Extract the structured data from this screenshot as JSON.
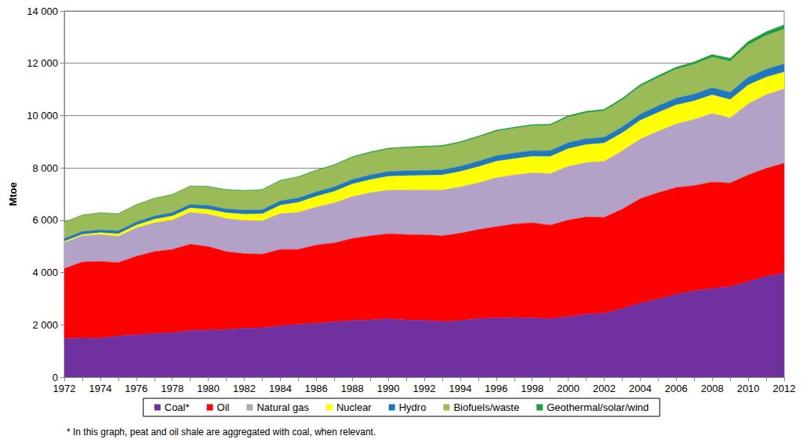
{
  "chart_data": {
    "type": "area",
    "stacked": true,
    "y_label": "Mtoe",
    "footnote": "* In this graph, peat and oil shale are aggregated with coal, when relevant.",
    "legend": "bottom",
    "grid": true,
    "categories": [
      "1972",
      null,
      "1974",
      null,
      "1976",
      null,
      "1978",
      null,
      "1980",
      null,
      "1982",
      null,
      "1984",
      null,
      "1986",
      null,
      "1988",
      null,
      "1990",
      null,
      "1992",
      null,
      "1994",
      null,
      "1996",
      null,
      "1998",
      null,
      "2000",
      null,
      "2002",
      null,
      "2004",
      null,
      "2006",
      null,
      "2008",
      null,
      "2010",
      null,
      "2012"
    ],
    "ylim": [
      0,
      14000
    ],
    "yticks": [
      0,
      {
        "value": 2000,
        "label": "2 000"
      },
      {
        "value": 4000,
        "label": "4 000"
      },
      {
        "value": 6000,
        "label": "6 000"
      },
      {
        "value": 8000,
        "label": "8 000"
      },
      {
        "value": 10000,
        "label": "10 000"
      },
      {
        "value": 12000,
        "label": "12 000"
      },
      {
        "value": 14000,
        "label": "14 000"
      }
    ],
    "series": [
      {
        "name": "Coal*",
        "color": "#7030a0",
        "values": [
          1480,
          1500,
          1490,
          1580,
          1620,
          1670,
          1700,
          1780,
          1800,
          1820,
          1870,
          1890,
          1960,
          2020,
          2060,
          2120,
          2160,
          2190,
          2230,
          2190,
          2170,
          2120,
          2160,
          2240,
          2260,
          2280,
          2260,
          2240,
          2310,
          2410,
          2440,
          2620,
          2830,
          2990,
          3170,
          3300,
          3390,
          3460,
          3650,
          3860,
          3970
        ]
      },
      {
        "name": "Oil",
        "color": "#ff0000",
        "values": [
          2670,
          2900,
          2930,
          2800,
          3000,
          3130,
          3180,
          3300,
          3190,
          2980,
          2850,
          2810,
          2920,
          2860,
          2990,
          3010,
          3140,
          3210,
          3250,
          3260,
          3270,
          3280,
          3340,
          3400,
          3490,
          3570,
          3640,
          3570,
          3690,
          3710,
          3670,
          3800,
          3990,
          4060,
          4080,
          4020,
          4070,
          3960,
          4080,
          4120,
          4210
        ]
      },
      {
        "name": "Natural gas",
        "color": "#b3a2c7",
        "values": [
          990,
          1000,
          1030,
          1000,
          1080,
          1100,
          1120,
          1220,
          1240,
          1260,
          1270,
          1270,
          1370,
          1420,
          1450,
          1530,
          1600,
          1650,
          1670,
          1700,
          1720,
          1750,
          1770,
          1790,
          1870,
          1880,
          1910,
          1970,
          2060,
          2080,
          2140,
          2230,
          2280,
          2350,
          2430,
          2530,
          2620,
          2490,
          2720,
          2820,
          2840
        ]
      },
      {
        "name": "Nuclear",
        "color": "#ffff00",
        "values": [
          50,
          55,
          70,
          95,
          110,
          135,
          160,
          165,
          185,
          220,
          240,
          270,
          320,
          380,
          410,
          440,
          480,
          500,
          525,
          550,
          555,
          575,
          590,
          610,
          630,
          620,
          630,
          655,
          675,
          690,
          695,
          685,
          715,
          720,
          725,
          710,
          710,
          700,
          720,
          670,
          640
        ]
      },
      {
        "name": "Hydro",
        "color": "#1f77c0",
        "values": [
          105,
          110,
          112,
          118,
          120,
          123,
          130,
          135,
          147,
          150,
          152,
          158,
          165,
          168,
          170,
          172,
          175,
          176,
          184,
          188,
          188,
          196,
          198,
          210,
          214,
          218,
          220,
          222,
          225,
          221,
          225,
          226,
          238,
          250,
          257,
          260,
          275,
          277,
          294,
          300,
          315
        ]
      },
      {
        "name": "Biofuels/waste",
        "color": "#9bbb59",
        "values": [
          620,
          630,
          640,
          650,
          660,
          670,
          685,
          700,
          715,
          730,
          740,
          755,
          770,
          790,
          805,
          820,
          835,
          845,
          855,
          870,
          880,
          890,
          900,
          915,
          930,
          940,
          945,
          960,
          975,
          990,
          1005,
          1030,
          1060,
          1080,
          1110,
          1140,
          1170,
          1190,
          1240,
          1290,
          1330
        ]
      },
      {
        "name": "Geothermal/solar/wind",
        "color": "#1e9e3a",
        "values": [
          6,
          6,
          7,
          7,
          8,
          9,
          10,
          11,
          12,
          14,
          16,
          19,
          22,
          25,
          28,
          32,
          36,
          38,
          40,
          42,
          43,
          44,
          45,
          46,
          47,
          48,
          49,
          51,
          60,
          62,
          64,
          66,
          70,
          75,
          80,
          90,
          100,
          110,
          125,
          145,
          165
        ]
      }
    ]
  }
}
